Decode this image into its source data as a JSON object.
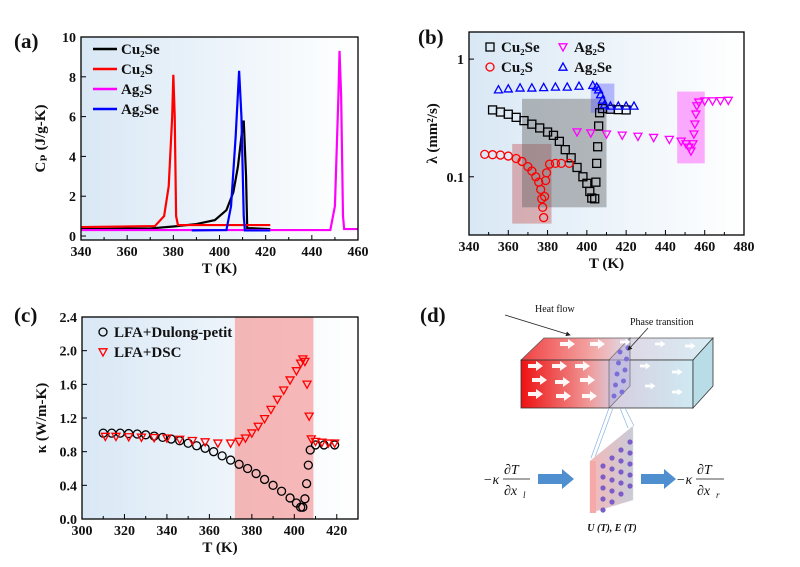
{
  "panels": {
    "a": "(a)",
    "b": "(b)",
    "c": "(c)",
    "d": "(d)"
  },
  "chart_data": [
    {
      "id": "a",
      "type": "line",
      "xlabel": "T (K)",
      "ylabel": "Cₚ (J/g-K)",
      "xlim": [
        340,
        460
      ],
      "ylim": [
        -0.2,
        10
      ],
      "xticks": [
        340,
        360,
        380,
        400,
        420,
        440,
        460
      ],
      "yticks": [
        0,
        2,
        4,
        6,
        8,
        10
      ],
      "legend_position": "top-left",
      "series": [
        {
          "name": "Cu₂Se",
          "color": "#000000",
          "points": [
            [
              340,
              0.35
            ],
            [
              370,
              0.38
            ],
            [
              380,
              0.48
            ],
            [
              390,
              0.6
            ],
            [
              398,
              0.8
            ],
            [
              403,
              1.3
            ],
            [
              406,
              2.2
            ],
            [
              408,
              3.5
            ],
            [
              410,
              5.5
            ],
            [
              410.5,
              5.8
            ],
            [
              411.5,
              3
            ],
            [
              412,
              0.4
            ],
            [
              422,
              0.35
            ]
          ]
        },
        {
          "name": "Cu₂S",
          "color": "#ff0000",
          "points": [
            [
              340,
              0.45
            ],
            [
              372,
              0.5
            ],
            [
              376,
              1
            ],
            [
              378,
              2.5
            ],
            [
              379.5,
              6
            ],
            [
              380,
              8.1
            ],
            [
              380.6,
              6
            ],
            [
              381.2,
              1
            ],
            [
              382,
              0.55
            ],
            [
              422,
              0.55
            ]
          ]
        },
        {
          "name": "Ag₂S",
          "color": "#ff00ff",
          "points": [
            [
              340,
              0.3
            ],
            [
              448,
              0.3
            ],
            [
              450,
              1.5
            ],
            [
              451.5,
              7
            ],
            [
              452,
              9.3
            ],
            [
              452.7,
              7
            ],
            [
              453.5,
              1
            ],
            [
              454,
              0.35
            ],
            [
              460,
              0.35
            ]
          ]
        },
        {
          "name": "Ag₂Se",
          "color": "#0000ff",
          "points": [
            [
              388,
              0.28
            ],
            [
              403,
              0.3
            ],
            [
              405,
              1.5
            ],
            [
              407,
              5
            ],
            [
              408.5,
              8.3
            ],
            [
              409.5,
              6
            ],
            [
              410.5,
              1
            ],
            [
              411,
              0.28
            ],
            [
              422,
              0.28
            ]
          ]
        }
      ]
    },
    {
      "id": "b",
      "type": "scatter",
      "yscale": "log",
      "xlabel": "T (K)",
      "ylabel": "λ (mm²/s)",
      "xlim": [
        340,
        480
      ],
      "ylim": [
        0.032,
        1.7
      ],
      "xticks": [
        340,
        360,
        380,
        400,
        420,
        440,
        460,
        480
      ],
      "yticks": [
        0.1,
        1
      ],
      "ytick_labels": [
        "0.1",
        "1"
      ],
      "legend_position": "top",
      "highlight_regions": [
        {
          "series": "Cu₂S",
          "x": [
            362,
            382
          ],
          "y": [
            0.04,
            0.19
          ],
          "color": "#c0504d"
        },
        {
          "series": "Cu₂Se",
          "x": [
            367,
            410
          ],
          "y": [
            0.055,
            0.46
          ],
          "color": "#5a5a5a"
        },
        {
          "series": "Ag₂Se",
          "x": [
            402,
            414
          ],
          "y": [
            0.35,
            0.62
          ],
          "color": "#5b5bff"
        },
        {
          "series": "Ag₂S",
          "x": [
            446,
            460
          ],
          "y": [
            0.13,
            0.53
          ],
          "color": "#ff33ff"
        }
      ],
      "series": [
        {
          "name": "Cu₂Se",
          "color": "#000000",
          "marker": "square",
          "points": [
            [
              352,
              0.37
            ],
            [
              356,
              0.355
            ],
            [
              360,
              0.34
            ],
            [
              364,
              0.32
            ],
            [
              368,
              0.3
            ],
            [
              372,
              0.28
            ],
            [
              376,
              0.26
            ],
            [
              380,
              0.24
            ],
            [
              383,
              0.225
            ],
            [
              386,
              0.2
            ],
            [
              389,
              0.17
            ],
            [
              392,
              0.145
            ],
            [
              395,
              0.12
            ],
            [
              398,
              0.1
            ],
            [
              400,
              0.088
            ],
            [
              401.5,
              0.075
            ],
            [
              402.5,
              0.066
            ],
            [
              404,
              0.065
            ],
            [
              404.6,
              0.09
            ],
            [
              405,
              0.13
            ],
            [
              405.5,
              0.18
            ],
            [
              406,
              0.27
            ],
            [
              406.5,
              0.35
            ],
            [
              408,
              0.38
            ],
            [
              412,
              0.375
            ],
            [
              416,
              0.372
            ],
            [
              420,
              0.37
            ]
          ]
        },
        {
          "name": "Cu₂S",
          "color": "#ff0000",
          "marker": "circle",
          "points": [
            [
              348,
              0.155
            ],
            [
              352,
              0.154
            ],
            [
              356,
              0.153
            ],
            [
              360,
              0.15
            ],
            [
              364,
              0.143
            ],
            [
              367,
              0.135
            ],
            [
              370,
              0.122
            ],
            [
              372,
              0.112
            ],
            [
              374,
              0.1
            ],
            [
              375.5,
              0.09
            ],
            [
              376.5,
              0.078
            ],
            [
              377,
              0.065
            ],
            [
              377.5,
              0.055
            ],
            [
              378,
              0.045
            ],
            [
              378.5,
              0.068
            ],
            [
              379,
              0.093
            ],
            [
              379.5,
              0.108
            ],
            [
              381,
              0.128
            ],
            [
              384,
              0.13
            ],
            [
              387,
              0.13
            ],
            [
              391,
              0.13
            ]
          ]
        },
        {
          "name": "Ag₂S",
          "color": "#ff00ff",
          "marker": "triangle-down",
          "points": [
            [
              395,
              0.24
            ],
            [
              402,
              0.235
            ],
            [
              410,
              0.23
            ],
            [
              418,
              0.225
            ],
            [
              426,
              0.22
            ],
            [
              434,
              0.215
            ],
            [
              442,
              0.207
            ],
            [
              448,
              0.2
            ],
            [
              450.5,
              0.19
            ],
            [
              452,
              0.178
            ],
            [
              453,
              0.165
            ],
            [
              454,
              0.19
            ],
            [
              454.5,
              0.23
            ],
            [
              455,
              0.28
            ],
            [
              455.5,
              0.34
            ],
            [
              456,
              0.4
            ],
            [
              457,
              0.43
            ],
            [
              460,
              0.44
            ],
            [
              464,
              0.44
            ],
            [
              468,
              0.442
            ],
            [
              472,
              0.445
            ]
          ]
        },
        {
          "name": "Ag₂Se",
          "color": "#0000ff",
          "marker": "triangle-up",
          "points": [
            [
              355,
              0.55
            ],
            [
              360,
              0.56
            ],
            [
              366,
              0.57
            ],
            [
              372,
              0.57
            ],
            [
              378,
              0.575
            ],
            [
              384,
              0.58
            ],
            [
              390,
              0.58
            ],
            [
              396,
              0.59
            ],
            [
              403,
              0.6
            ],
            [
              405,
              0.58
            ],
            [
              406,
              0.55
            ],
            [
              407,
              0.5
            ],
            [
              408,
              0.45
            ],
            [
              409,
              0.41
            ],
            [
              412,
              0.4
            ],
            [
              416,
              0.4
            ],
            [
              420,
              0.4
            ],
            [
              424,
              0.4
            ]
          ]
        }
      ]
    },
    {
      "id": "c",
      "type": "scatter",
      "xlabel": "T (K)",
      "ylabel": "κ (W/m-K)",
      "xlim": [
        300,
        430
      ],
      "ylim": [
        0,
        2.4
      ],
      "xticks": [
        300,
        320,
        340,
        360,
        380,
        400,
        420
      ],
      "yticks": [
        0,
        0.4,
        0.8,
        1.2,
        1.6,
        2.0,
        2.4
      ],
      "ytick_labels": [
        "0.0",
        "0.4",
        "0.8",
        "1.2",
        "1.6",
        "2.0",
        "2.4"
      ],
      "legend_position": "top-left",
      "highlight_regions": [
        {
          "x": [
            372,
            409
          ],
          "y": [
            0,
            2.4
          ],
          "color": "#f4a0a0"
        }
      ],
      "series": [
        {
          "name": "LFA+Dulong-petit",
          "color": "#000000",
          "marker": "circle",
          "points": [
            [
              310,
              1.02
            ],
            [
              314,
              1.02
            ],
            [
              318,
              1.02
            ],
            [
              322,
              1.015
            ],
            [
              326,
              1.01
            ],
            [
              330,
              1.0
            ],
            [
              334,
              0.985
            ],
            [
              338,
              0.97
            ],
            [
              342,
              0.95
            ],
            [
              346,
              0.93
            ],
            [
              350,
              0.9
            ],
            [
              354,
              0.87
            ],
            [
              358,
              0.84
            ],
            [
              362,
              0.8
            ],
            [
              366,
              0.75
            ],
            [
              370,
              0.7
            ],
            [
              374,
              0.65
            ],
            [
              378,
              0.6
            ],
            [
              382,
              0.54
            ],
            [
              386,
              0.47
            ],
            [
              390,
              0.4
            ],
            [
              394,
              0.33
            ],
            [
              398,
              0.25
            ],
            [
              401,
              0.19
            ],
            [
              403,
              0.14
            ],
            [
              404,
              0.14
            ],
            [
              405,
              0.24
            ],
            [
              405.8,
              0.42
            ],
            [
              406.6,
              0.64
            ],
            [
              407.5,
              0.82
            ],
            [
              410,
              0.88
            ],
            [
              414,
              0.88
            ],
            [
              419,
              0.88
            ]
          ]
        },
        {
          "name": "LFA+DSC",
          "color": "#ff0000",
          "marker": "triangle-down",
          "points": [
            [
              311,
              0.98
            ],
            [
              316,
              0.98
            ],
            [
              322,
              0.975
            ],
            [
              328,
              0.97
            ],
            [
              334,
              0.965
            ],
            [
              340,
              0.96
            ],
            [
              346,
              0.945
            ],
            [
              352,
              0.93
            ],
            [
              358,
              0.915
            ],
            [
              364,
              0.9
            ],
            [
              370,
              0.9
            ],
            [
              374,
              0.92
            ],
            [
              377,
              0.96
            ],
            [
              380,
              1.02
            ],
            [
              383,
              1.1
            ],
            [
              386,
              1.19
            ],
            [
              389,
              1.3
            ],
            [
              392,
              1.42
            ],
            [
              395,
              1.53
            ],
            [
              398,
              1.65
            ],
            [
              401,
              1.76
            ],
            [
              403,
              1.85
            ],
            [
              404,
              1.9
            ],
            [
              405,
              1.87
            ],
            [
              406,
              1.6
            ],
            [
              407,
              1.22
            ],
            [
              408,
              0.95
            ],
            [
              410,
              0.92
            ],
            [
              413,
              0.91
            ],
            [
              416,
              0.9
            ],
            [
              419,
              0.9
            ]
          ]
        }
      ]
    }
  ],
  "diagram": {
    "heat_flow_label": "Heat flow",
    "phase_transition_label": "Phase transition",
    "left_flux": {
      "prefix": "−κ",
      "numerator": "∂T",
      "denominator": "∂x",
      "subscript": "l"
    },
    "right_flux": {
      "prefix": "−κ",
      "numerator": "∂T",
      "denominator": "∂x",
      "subscript": "r"
    },
    "interface_label": "U (T), E (T)"
  }
}
